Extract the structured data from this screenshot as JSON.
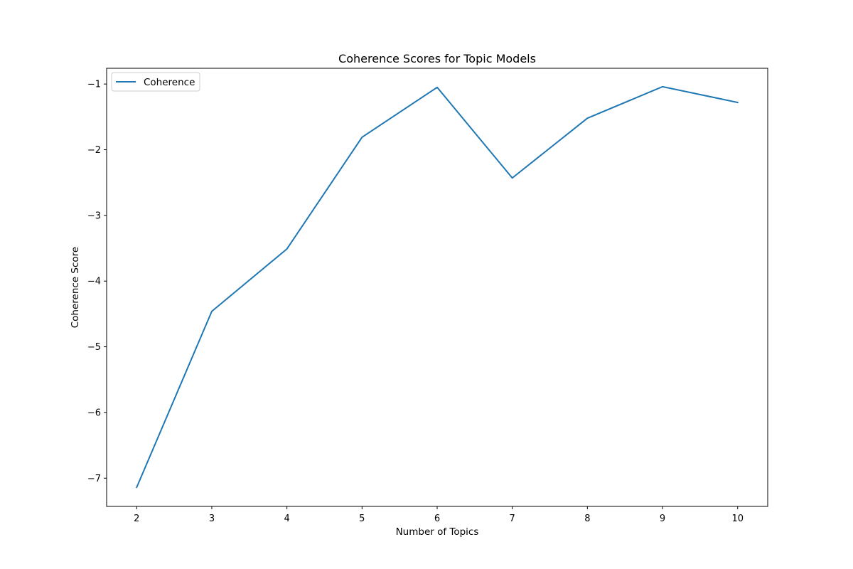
{
  "chart_data": {
    "type": "line",
    "title": "Coherence Scores for Topic Models",
    "xlabel": "Number of Topics",
    "ylabel": "Coherence Score",
    "x": [
      2,
      3,
      4,
      5,
      6,
      7,
      8,
      9,
      10
    ],
    "x_ticks": [
      "2",
      "3",
      "4",
      "5",
      "6",
      "7",
      "8",
      "9",
      "10"
    ],
    "y_ticks": [
      "−1",
      "−2",
      "−3",
      "−4",
      "−5",
      "−6",
      "−7"
    ],
    "y_tick_values": [
      -1,
      -2,
      -3,
      -4,
      -5,
      -6,
      -7
    ],
    "xlim": [
      1.6,
      10.4
    ],
    "ylim": [
      -7.43,
      -0.76
    ],
    "series": [
      {
        "name": "Coherence",
        "color": "#1f77b4",
        "values": [
          -7.14,
          -4.46,
          -3.51,
          -1.81,
          -1.05,
          -2.43,
          -1.52,
          -1.04,
          -1.28
        ]
      }
    ],
    "legend": {
      "placement": "top-left"
    },
    "grid": false
  }
}
